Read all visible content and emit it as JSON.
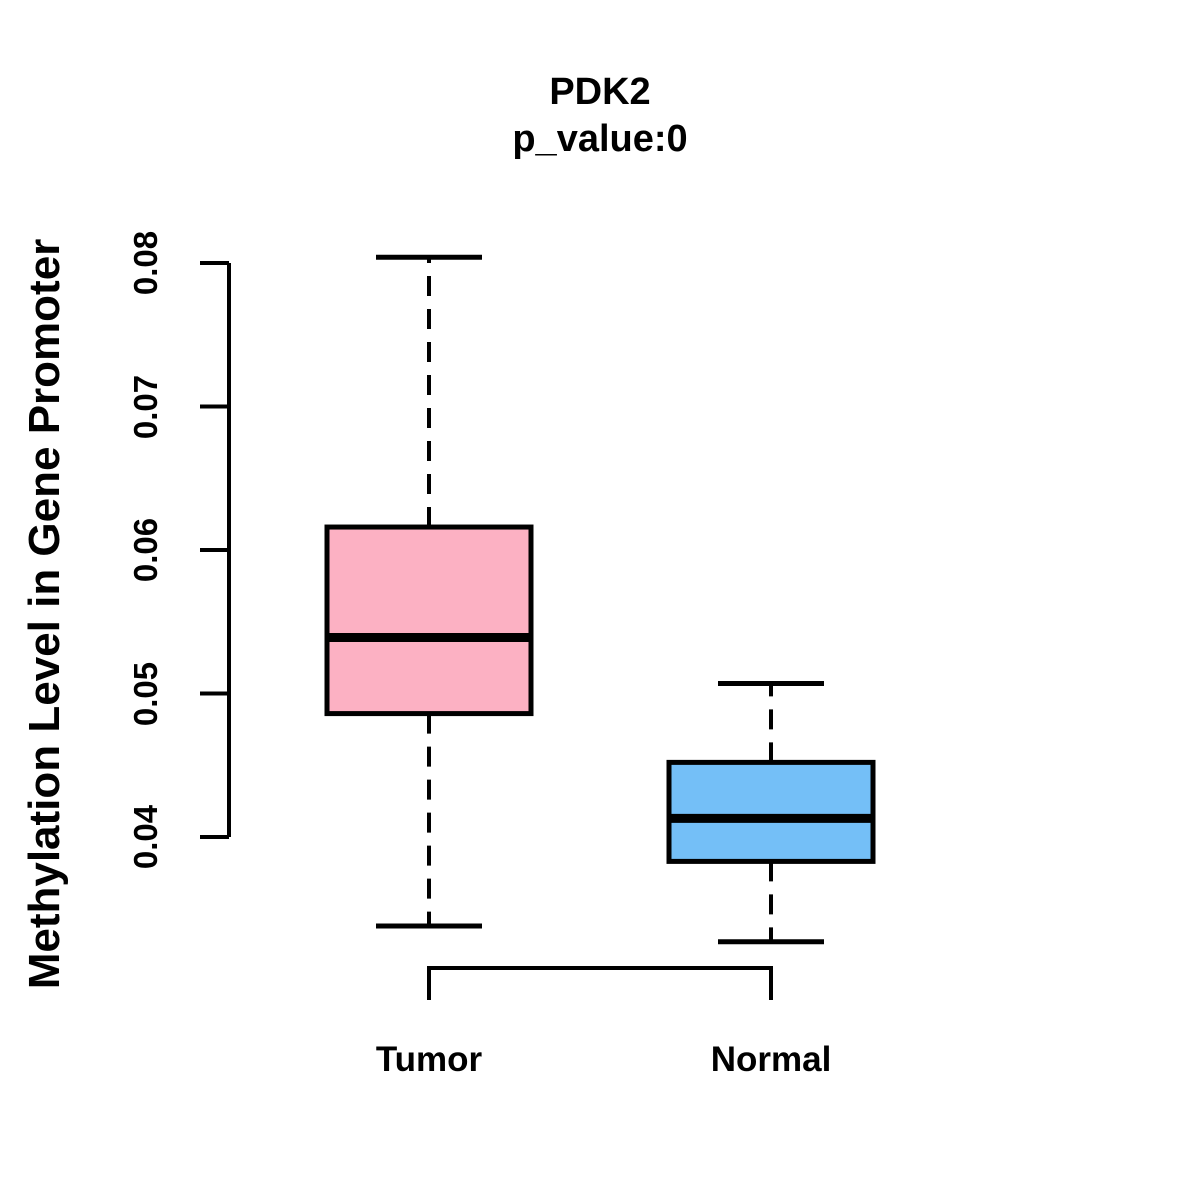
{
  "chart_data": {
    "type": "boxplot",
    "title": "PDK2",
    "subtitle": "p_value:0",
    "ylabel": "Methylation Level in Gene Promoter",
    "xlabel": "",
    "categories": [
      "Tumor",
      "Normal"
    ],
    "series": [
      {
        "name": "Tumor",
        "fill_color": "#FCB1C3",
        "whisker_low": 0.0338,
        "q1": 0.0486,
        "median": 0.0539,
        "q3": 0.0616,
        "whisker_high": 0.0804
      },
      {
        "name": "Normal",
        "fill_color": "#74BFF7",
        "whisker_low": 0.0327,
        "q1": 0.0383,
        "median": 0.0413,
        "q3": 0.0452,
        "whisker_high": 0.0507
      }
    ],
    "y_tick_labels": [
      "0.04",
      "0.05",
      "0.06",
      "0.07",
      "0.08"
    ],
    "y_tick_values": [
      0.04,
      0.05,
      0.06,
      0.07,
      0.08
    ],
    "y_axis_range": [
      0.04,
      0.08
    ],
    "grid": false,
    "legend": "none",
    "whisker_line_style": "dashed",
    "box_border_color": "#000000",
    "median_color": "#000000",
    "axis_color": "#000000",
    "background_color": "#FFFFFF"
  }
}
